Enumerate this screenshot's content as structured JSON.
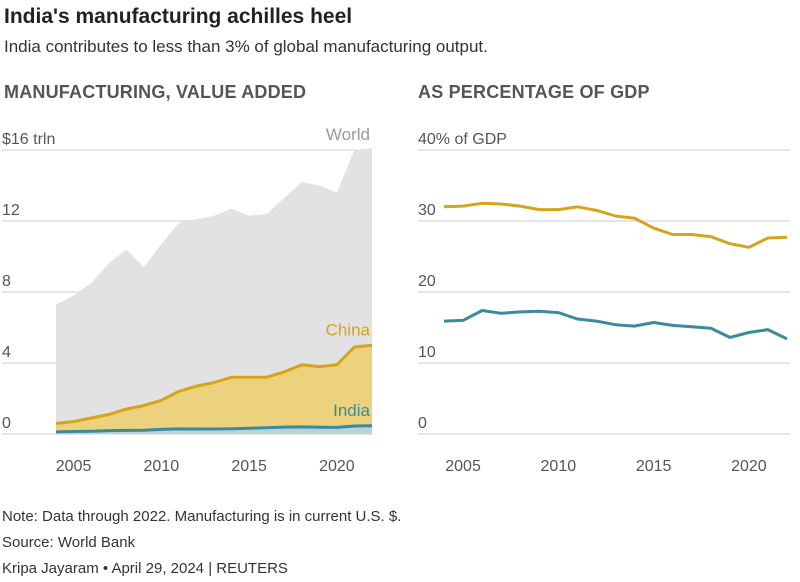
{
  "header": {
    "title": "India's manufacturing achilles heel",
    "subtitle": "India contributes to less than 3% of global manufacturing output."
  },
  "colors": {
    "world_fill": "#e2e2e2",
    "china": "#d4a51a",
    "china_fill": "#ecd27c",
    "india": "#3b8aa0",
    "gridline": "#cccccc",
    "axis_text": "#555555"
  },
  "chart_data": [
    {
      "type": "area",
      "panel_title": "MANUFACTURING, VALUE ADDED",
      "y_unit_label": "$16 trln",
      "ylim": [
        0,
        16
      ],
      "yticks": [
        0,
        4,
        8,
        12,
        16
      ],
      "ytick_labels": [
        "0",
        "4",
        "8",
        "12",
        "$16 trln"
      ],
      "xlim": [
        2004,
        2022
      ],
      "xticks": [
        2005,
        2010,
        2015,
        2020
      ],
      "xtick_labels": [
        "2005",
        "2010",
        "2015",
        "2020"
      ],
      "grid": true,
      "x": [
        2004,
        2005,
        2006,
        2007,
        2008,
        2009,
        2010,
        2011,
        2012,
        2013,
        2014,
        2015,
        2016,
        2017,
        2018,
        2019,
        2020,
        2021,
        2022
      ],
      "series": [
        {
          "name": "World",
          "values": [
            7.3,
            7.8,
            8.5,
            9.6,
            10.4,
            9.4,
            10.7,
            11.9,
            12.1,
            12.3,
            12.7,
            12.3,
            12.4,
            13.3,
            14.2,
            14.0,
            13.6,
            16.0,
            16.1
          ]
        },
        {
          "name": "China",
          "values": [
            0.6,
            0.7,
            0.9,
            1.1,
            1.4,
            1.6,
            1.9,
            2.4,
            2.7,
            2.9,
            3.2,
            3.2,
            3.2,
            3.5,
            3.9,
            3.8,
            3.9,
            4.9,
            5.0
          ]
        },
        {
          "name": "India",
          "values": [
            0.12,
            0.14,
            0.16,
            0.19,
            0.2,
            0.21,
            0.26,
            0.29,
            0.28,
            0.28,
            0.3,
            0.32,
            0.35,
            0.39,
            0.4,
            0.38,
            0.37,
            0.45,
            0.46
          ]
        }
      ]
    },
    {
      "type": "line",
      "panel_title": "AS PERCENTAGE OF GDP",
      "y_unit_label": "40% of GDP",
      "ylim": [
        0,
        40
      ],
      "yticks": [
        0,
        10,
        20,
        30,
        40
      ],
      "ytick_labels": [
        "0",
        "10",
        "20",
        "30",
        "40% of GDP"
      ],
      "xlim": [
        2004,
        2022
      ],
      "xticks": [
        2005,
        2010,
        2015,
        2020
      ],
      "xtick_labels": [
        "2005",
        "2010",
        "2015",
        "2020"
      ],
      "grid": true,
      "x": [
        2004,
        2005,
        2006,
        2007,
        2008,
        2009,
        2010,
        2011,
        2012,
        2013,
        2014,
        2015,
        2016,
        2017,
        2018,
        2019,
        2020,
        2021,
        2022
      ],
      "series": [
        {
          "name": "China",
          "values": [
            32.0,
            32.1,
            32.5,
            32.4,
            32.1,
            31.6,
            31.6,
            32.0,
            31.5,
            30.7,
            30.4,
            29.0,
            28.1,
            28.1,
            27.8,
            26.8,
            26.3,
            27.6,
            27.7
          ]
        },
        {
          "name": "India",
          "values": [
            15.9,
            16.0,
            17.4,
            17.0,
            17.2,
            17.3,
            17.1,
            16.2,
            15.9,
            15.4,
            15.2,
            15.7,
            15.3,
            15.1,
            14.9,
            13.6,
            14.3,
            14.7,
            13.4
          ]
        }
      ]
    }
  ],
  "footer": {
    "note": "Note: Data through 2022. Manufacturing is in current U.S. $.",
    "source": "Source: World Bank",
    "credit": "Kripa Jayaram • April 29, 2024 | REUTERS"
  }
}
